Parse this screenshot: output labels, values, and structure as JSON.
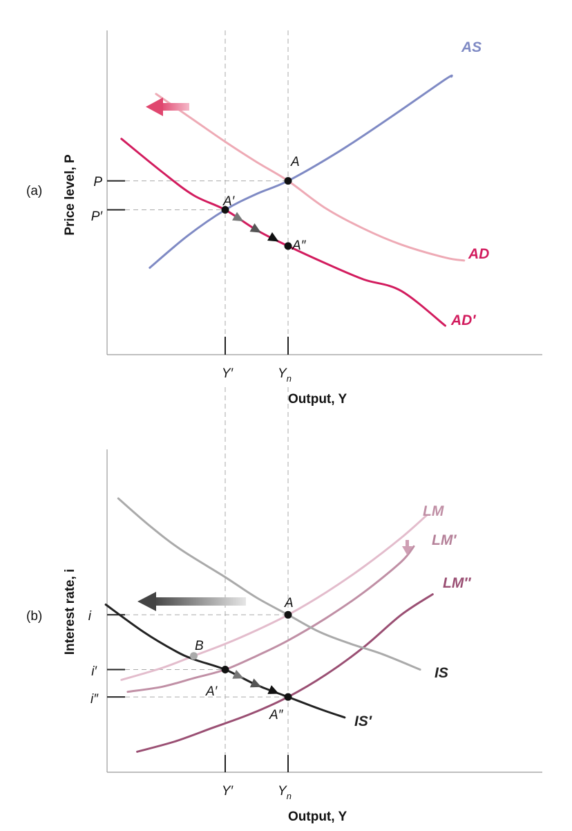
{
  "chart_data": [
    {
      "type": "line",
      "panel_label": "(a)",
      "xlabel": "Output, Y",
      "ylabel": "Price level, P",
      "x_ticks": [
        {
          "id": "Yp",
          "text": "Y′",
          "x": 2.0
        },
        {
          "id": "Yn",
          "text": "Yn",
          "x": 3.0
        }
      ],
      "y_ticks": [
        {
          "id": "P",
          "text": "P",
          "y": 6.0
        },
        {
          "id": "Pp",
          "text": "P′",
          "y": 5.0
        }
      ],
      "xlim": [
        0,
        7
      ],
      "ylim": [
        0,
        10
      ],
      "series": [
        {
          "id": "AS",
          "name": "AS",
          "color": "#7f8ac4",
          "x": [
            0.8,
            1.4,
            2.0,
            2.5,
            3.0,
            3.8,
            4.6,
            5.5,
            5.6
          ],
          "y": [
            3.0,
            4.1,
            5.0,
            5.55,
            6.0,
            7.0,
            8.15,
            9.5,
            9.6
          ]
        },
        {
          "id": "AD",
          "name": "AD",
          "color": "#eeaab5",
          "x": [
            0.9,
            1.5,
            2.0,
            2.5,
            3.0,
            3.6,
            4.2,
            4.8,
            5.5,
            5.8
          ],
          "y": [
            9.0,
            8.1,
            7.35,
            6.65,
            6.0,
            5.05,
            4.35,
            3.8,
            3.35,
            3.25
          ]
        },
        {
          "id": "ADp",
          "name": "AD′",
          "color": "#d21c5e",
          "x": [
            0.35,
            1.0,
            1.5,
            2.0,
            2.5,
            3.0,
            3.6,
            4.2,
            4.8,
            5.5
          ],
          "y": [
            7.45,
            6.3,
            5.5,
            5.0,
            4.3,
            3.75,
            3.15,
            2.6,
            2.2,
            1.0
          ]
        }
      ],
      "points": [
        {
          "id": "A",
          "label": "A",
          "x": 3.0,
          "y": 6.0
        },
        {
          "id": "Ap",
          "label": "A′",
          "x": 2.0,
          "y": 5.0
        },
        {
          "id": "App",
          "label": "A″",
          "x": 3.0,
          "y": 3.75
        }
      ]
    },
    {
      "type": "line",
      "panel_label": "(b)",
      "xlabel": "Output, Y",
      "ylabel": "Interest rate, i",
      "x_ticks": [
        {
          "id": "Yp",
          "text": "Y′",
          "x": 2.0
        },
        {
          "id": "Yn",
          "text": "Yn",
          "x": 3.0
        }
      ],
      "y_ticks": [
        {
          "id": "i",
          "text": "i",
          "y": 4.6
        },
        {
          "id": "ip",
          "text": "i′",
          "y": 3.0
        },
        {
          "id": "ipp",
          "text": "i″",
          "y": 2.2
        }
      ],
      "xlim": [
        0,
        7
      ],
      "ylim": [
        0,
        9.4
      ],
      "series": [
        {
          "id": "LM",
          "name": "LM",
          "color": "#e3bccc",
          "x": [
            0.35,
            1.0,
            1.5,
            2.0,
            2.5,
            3.0,
            3.6,
            4.2,
            4.8,
            5.2
          ],
          "y": [
            2.7,
            3.05,
            3.4,
            3.75,
            4.15,
            4.6,
            5.25,
            6.0,
            6.85,
            7.5
          ]
        },
        {
          "id": "LMp",
          "name": "LM′",
          "color": "#c08fa5",
          "x": [
            0.45,
            1.0,
            1.5,
            2.0,
            2.5,
            3.0,
            3.6,
            4.2,
            4.8,
            5.0
          ],
          "y": [
            2.35,
            2.5,
            2.75,
            3.0,
            3.4,
            3.85,
            4.5,
            5.25,
            6.15,
            6.6
          ]
        },
        {
          "id": "LMpp",
          "name": "LM″",
          "color": "#9a4f73",
          "x": [
            0.6,
            1.2,
            1.8,
            2.4,
            3.0,
            3.6,
            4.2,
            4.8,
            5.3
          ],
          "y": [
            0.6,
            0.9,
            1.3,
            1.7,
            2.2,
            2.85,
            3.65,
            4.6,
            5.2
          ]
        },
        {
          "id": "IS",
          "name": "IS",
          "color": "#aaaaaa",
          "x": [
            0.3,
            0.8,
            1.3,
            2.0,
            2.5,
            3.0,
            3.5,
            4.0,
            4.5,
            5.1
          ],
          "y": [
            8.0,
            7.2,
            6.5,
            5.7,
            5.1,
            4.6,
            4.1,
            3.75,
            3.45,
            3.0
          ]
        },
        {
          "id": "ISp",
          "name": "IS′",
          "color": "#222222",
          "x": [
            0.1,
            0.7,
            1.2,
            1.5,
            2.0,
            2.5,
            3.0,
            3.5,
            3.9
          ],
          "y": [
            4.9,
            4.1,
            3.55,
            3.3,
            3.0,
            2.55,
            2.2,
            1.85,
            1.6
          ]
        }
      ],
      "points": [
        {
          "id": "A",
          "label": "A",
          "x": 3.0,
          "y": 4.6
        },
        {
          "id": "B",
          "label": "B",
          "x": 1.5,
          "y": 3.4
        },
        {
          "id": "Ap",
          "label": "A′",
          "x": 2.0,
          "y": 3.0
        },
        {
          "id": "App",
          "label": "A″",
          "x": 3.0,
          "y": 2.2
        }
      ]
    }
  ]
}
